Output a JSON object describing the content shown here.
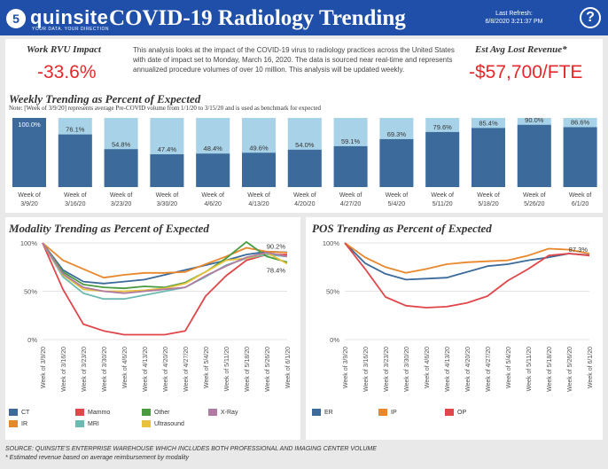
{
  "header": {
    "logo_badge": "5",
    "logo_text": "quinsite",
    "logo_tagline": "YOUR DATA. YOUR DIRECTION",
    "title": "COVID-19 Radiology Trending",
    "refresh_label": "Last Refresh:",
    "refresh_value": "6/8/2020 3:21:37 PM",
    "help": "?"
  },
  "kpis": {
    "rvu_label": "Work RVU Impact",
    "rvu_value": "-33.6%",
    "rev_label": "Est Avg Lost Revenue*",
    "rev_value": "-$57,700/FTE"
  },
  "description": "This analysis looks at the impact of the COVID-19 virus to radiology practices across the United States with date of impact set to Monday, March 16, 2020.  The data is sourced near real-time and represents annualized procedure volumes of over 10 million.  This analysis will be updated weekly.",
  "weekly": {
    "title": "Weekly Trending as Percent of Expected",
    "note": "Note: [Week of 3/9/20] represents average Pre-COVID volume from 1/1/20 to 3/15/20 and is used as benchmark for expected"
  },
  "modality_title": "Modality Trending as Percent of Expected",
  "pos_title": "POS Trending as Percent of Expected",
  "colors": {
    "bar_dark": "#3b6a9b",
    "bar_light": "#a8d2e8",
    "CT": "#3b6a9b",
    "IR": "#e8872b",
    "Mammo": "#e0464a",
    "MRI": "#6dbab3",
    "Other": "#4a9a40",
    "Ultrasound": "#e8c23a",
    "X-Ray": "#b07aa1"
  },
  "chart_data": [
    {
      "type": "bar",
      "title": "Weekly Trending as Percent of Expected",
      "categories": [
        "Week of 3/9/20",
        "Week of 3/16/20",
        "Week of 3/23/20",
        "Week of 3/30/20",
        "Week of 4/6/20",
        "Week of 4/13/20",
        "Week of 4/20/20",
        "Week of 4/27/20",
        "Week of 5/4/20",
        "Week of 5/11/20",
        "Week of 5/18/20",
        "Week of 5/26/20",
        "Week of 6/1/20"
      ],
      "values": [
        100.0,
        76.1,
        54.8,
        47.4,
        48.4,
        49.6,
        54.0,
        59.1,
        69.3,
        79.6,
        85.4,
        90.0,
        86.6
      ],
      "labels": [
        "100.0%",
        "76.1%",
        "54.8%",
        "47.4%",
        "48.4%",
        "49.6%",
        "54.0%",
        "59.1%",
        "69.3%",
        "79.6%",
        "85.4%",
        "90.0%",
        "86.6%"
      ],
      "ylim": [
        0,
        100
      ]
    },
    {
      "type": "line",
      "title": "Modality Trending as Percent of Expected",
      "x": [
        "Week of 3/9/20",
        "Week of 3/16/20",
        "Week of 3/23/20",
        "Week of 3/30/20",
        "Week of 4/6/20",
        "Week of 4/13/20",
        "Week of 4/20/20",
        "Week of 4/27/20",
        "Week of 5/4/20",
        "Week of 5/11/20",
        "Week of 5/18/20",
        "Week of 5/26/20",
        "Week of 6/1/20"
      ],
      "y_ticks": [
        "100%",
        "50%",
        "0%"
      ],
      "ylim": [
        0,
        100
      ],
      "annotations": [
        "90.2%",
        "78.4%"
      ],
      "series": [
        {
          "name": "CT",
          "values": [
            100,
            72,
            60,
            58,
            60,
            62,
            67,
            72,
            77,
            82,
            88,
            91,
            90.2
          ]
        },
        {
          "name": "IR",
          "values": [
            100,
            82,
            73,
            64,
            67,
            69,
            69,
            70,
            78,
            86,
            95,
            91,
            90
          ]
        },
        {
          "name": "Mammo",
          "values": [
            100,
            52,
            16,
            9,
            5,
            5,
            5,
            9,
            45,
            66,
            82,
            88,
            88
          ]
        },
        {
          "name": "MRI",
          "values": [
            100,
            65,
            48,
            42,
            42,
            46,
            50,
            54,
            65,
            77,
            84,
            88,
            86
          ]
        },
        {
          "name": "Other",
          "values": [
            100,
            70,
            57,
            54,
            53,
            55,
            54,
            59,
            70,
            84,
            101,
            86,
            80
          ]
        },
        {
          "name": "Ultrasound",
          "values": [
            100,
            67,
            52,
            50,
            50,
            51,
            53,
            58,
            70,
            82,
            84,
            90,
            78.4
          ]
        },
        {
          "name": "X-Ray",
          "values": [
            100,
            68,
            54,
            50,
            48,
            50,
            52,
            54,
            66,
            76,
            85,
            90,
            86
          ]
        }
      ]
    },
    {
      "type": "line",
      "title": "POS Trending as Percent of Expected",
      "x": [
        "Week of 3/9/20",
        "Week of 3/16/20",
        "Week of 3/23/20",
        "Week of 3/30/20",
        "Week of 4/6/20",
        "Week of 4/13/20",
        "Week of 4/20/20",
        "Week of 4/27/20",
        "Week of 5/4/20",
        "Week of 5/11/20",
        "Week of 5/18/20",
        "Week of 5/26/20",
        "Week of 6/1/20"
      ],
      "y_ticks": [
        "100%",
        "50%",
        "0%"
      ],
      "ylim": [
        0,
        100
      ],
      "annotations": [
        "87.3%"
      ],
      "series": [
        {
          "name": "ER",
          "values": [
            100,
            79,
            68,
            62,
            63,
            64,
            70,
            76,
            78,
            82,
            85,
            89,
            87.3
          ]
        },
        {
          "name": "IP",
          "values": [
            100,
            85,
            75,
            69,
            73,
            78,
            80,
            81,
            82,
            87,
            94,
            93,
            89
          ]
        },
        {
          "name": "OP",
          "values": [
            100,
            73,
            44,
            35,
            33,
            34,
            38,
            45,
            61,
            73,
            87,
            89,
            87
          ]
        }
      ]
    }
  ],
  "pos_colors": {
    "ER": "#3b6a9b",
    "IP": "#e8872b",
    "OP": "#e0464a"
  },
  "footer": {
    "source": "SOURCE: QUINSITE'S ENTERPRISE WAREHOUSE WHICH INCLUDES BOTH PROFESSIONAL AND IMAGING CENTER VOLUME",
    "footnote": "* Estimated revenue based on average reimbursement by modality"
  }
}
